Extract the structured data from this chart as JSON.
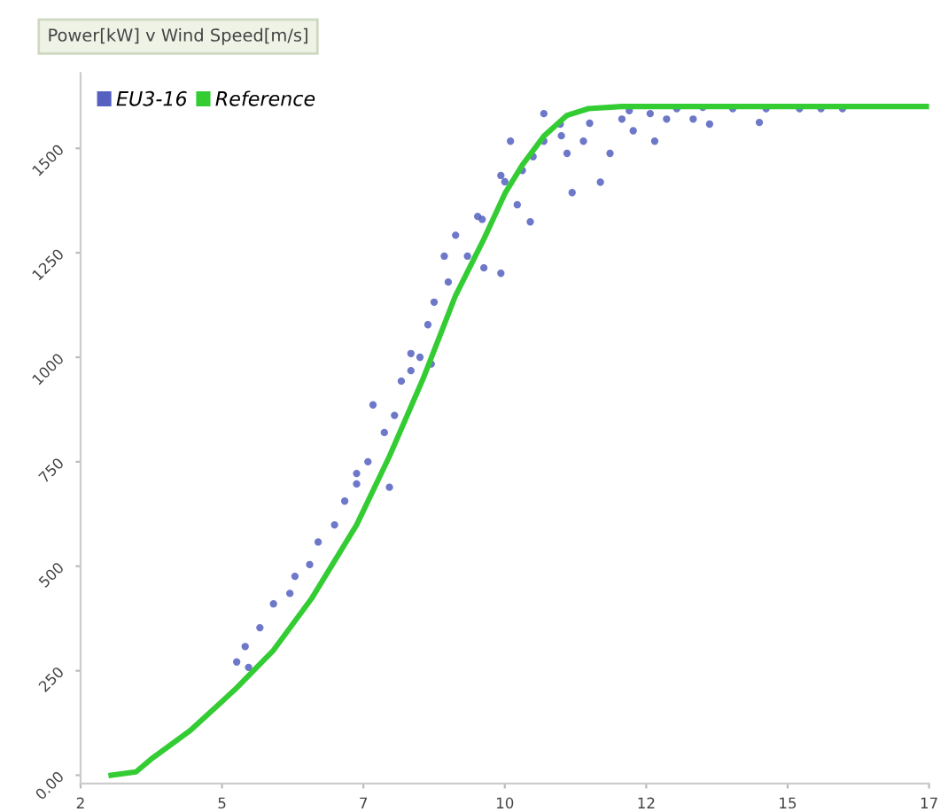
{
  "chart_data": {
    "type": "scatter",
    "title": "Power[kW] v Wind Speed[m/s]",
    "xlim": [
      2.5,
      17.5
    ],
    "ylim": [
      -20,
      1680
    ],
    "xticks": [
      {
        "value": 2.5,
        "label": "2"
      },
      5,
      {
        "value": 7.5,
        "label": "7"
      },
      10,
      {
        "value": 12.5,
        "label": "12"
      },
      15,
      {
        "value": 17.5,
        "label": "17"
      }
    ],
    "yticks": [
      {
        "value": 0,
        "label": "0.00"
      },
      250,
      500,
      750,
      1000,
      1250,
      1500
    ],
    "grid": false,
    "legend": "top left",
    "series": [
      {
        "name": "EU3-16",
        "type": "scatter",
        "color": "#5560c0",
        "marker": "circle",
        "x": [
          5.26,
          5.47,
          5.41,
          5.67,
          5.91,
          6.2,
          6.29,
          6.55,
          6.7,
          6.99,
          7.17,
          7.38,
          7.58,
          7.67,
          7.87,
          7.96,
          8.05,
          8.17,
          8.34,
          8.7,
          7.38,
          8.34,
          8.64,
          8.75,
          8.93,
          9.13,
          9.34,
          9.63,
          9.93,
          9.52,
          9.93,
          10.1,
          10.22,
          10.45,
          10.31,
          10.69,
          10.69,
          10.98,
          11.1,
          11.19,
          11.39,
          11.69,
          11.86,
          12.07,
          12.27,
          12.57,
          12.65,
          12.86,
          13.04,
          13.33,
          13.62,
          14.03,
          14.5,
          14.62,
          15.21,
          15.59,
          15.97,
          8.5,
          9.0,
          9.6,
          10.0,
          10.5,
          11.0,
          11.5,
          12.2,
          13.5
        ],
        "values": [
          271,
          258,
          308,
          353,
          410,
          435,
          476,
          504,
          558,
          599,
          656,
          697,
          750,
          886,
          820,
          689,
          861,
          943,
          968,
          984,
          722,
          1009,
          1078,
          1132,
          1242,
          1292,
          1242,
          1214,
          1201,
          1337,
          1435,
          1517,
          1365,
          1324,
          1447,
          1583,
          1517,
          1558,
          1488,
          1394,
          1517,
          1419,
          1488,
          1570,
          1542,
          1583,
          1517,
          1570,
          1595,
          1570,
          1558,
          1595,
          1562,
          1595,
          1595,
          1595,
          1595,
          1000,
          1180,
          1330,
          1420,
          1480,
          1530,
          1560,
          1590,
          1598
        ]
      },
      {
        "name": "Reference",
        "type": "line",
        "color": "#33cc33",
        "marker": "none",
        "line_style": "solid",
        "x": [
          3.04,
          3.48,
          3.77,
          4.44,
          5.23,
          5.91,
          6.58,
          7.38,
          7.96,
          8.55,
          9.13,
          9.63,
          10.01,
          10.31,
          10.69,
          11.1,
          11.48,
          12.07,
          17.5
        ],
        "values": [
          0,
          8,
          41,
          107,
          205,
          299,
          422,
          599,
          763,
          947,
          1148,
          1283,
          1394,
          1460,
          1529,
          1579,
          1595,
          1600,
          1600
        ]
      }
    ]
  }
}
